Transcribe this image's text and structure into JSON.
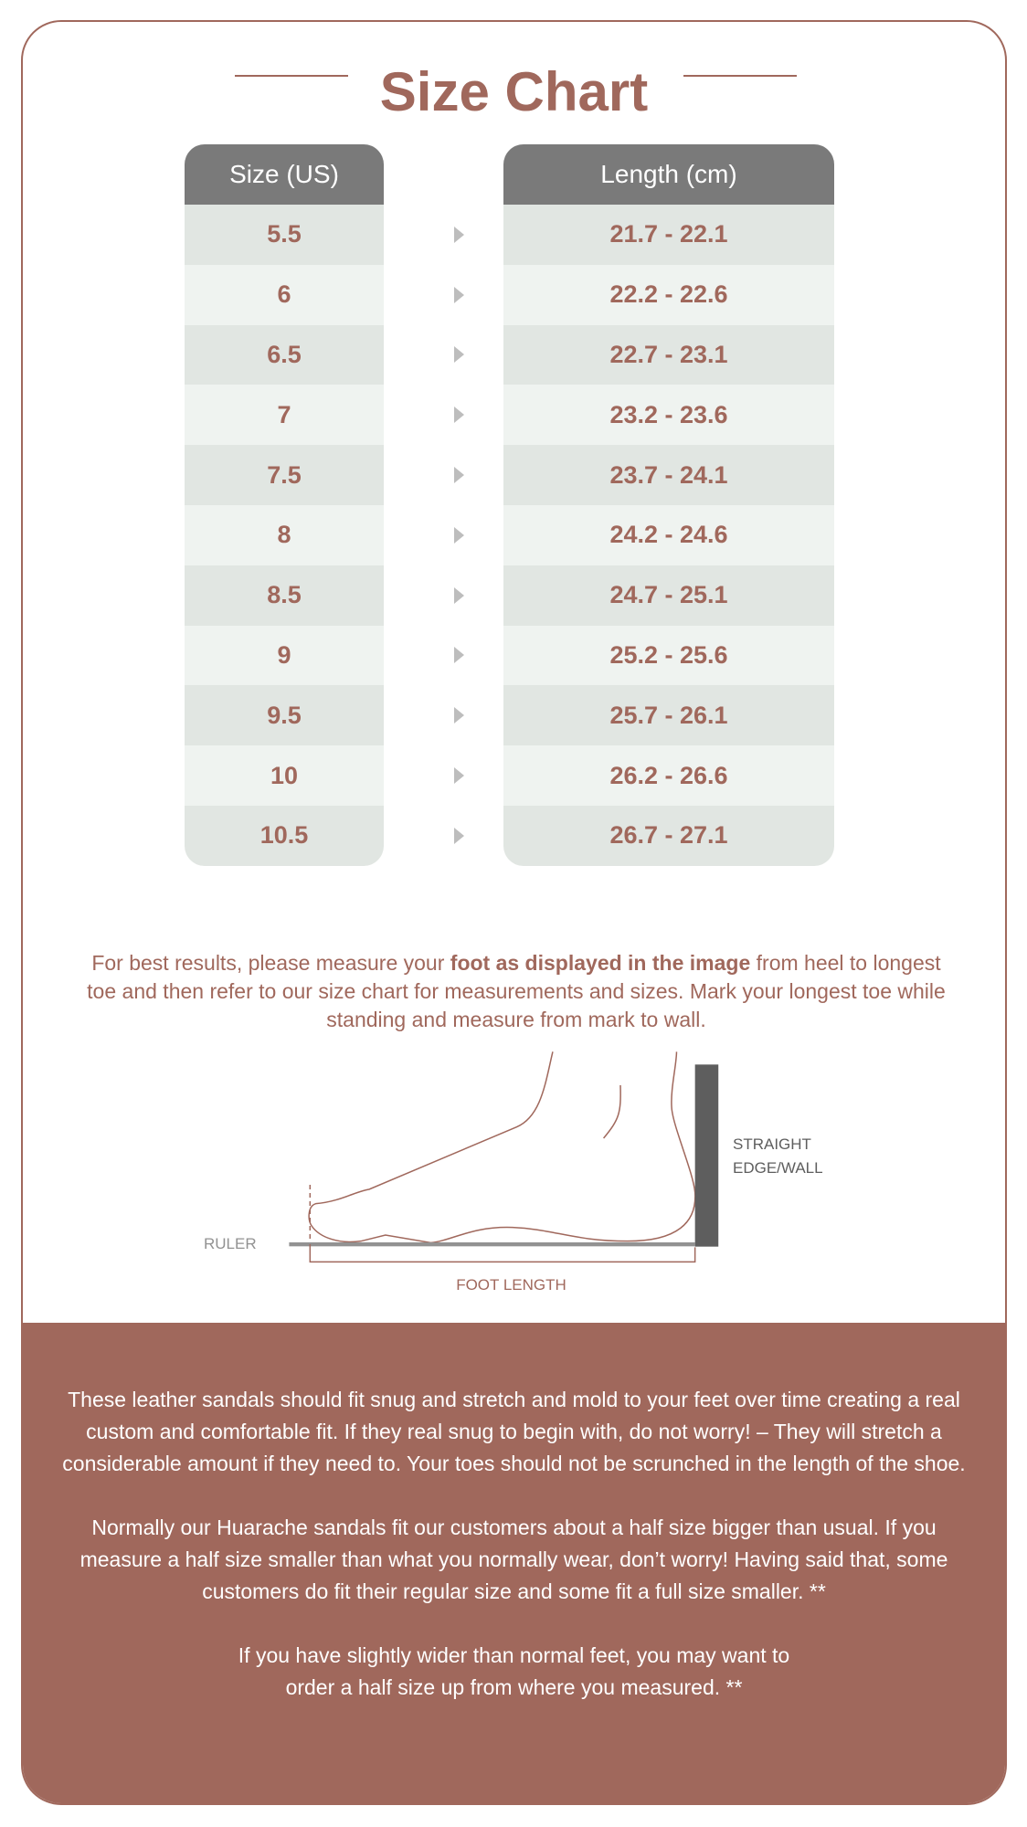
{
  "title": "Size Chart",
  "table": {
    "size_header": "Size (US)",
    "length_header": "Length (cm)",
    "rows": [
      {
        "size": "5.5",
        "length": "21.7 - 22.1"
      },
      {
        "size": "6",
        "length": "22.2 - 22.6"
      },
      {
        "size": "6.5",
        "length": "22.7 - 23.1"
      },
      {
        "size": "7",
        "length": "23.2 - 23.6"
      },
      {
        "size": "7.5",
        "length": "23.7 - 24.1"
      },
      {
        "size": "8",
        "length": "24.2 - 24.6"
      },
      {
        "size": "8.5",
        "length": "24.7 - 25.1"
      },
      {
        "size": "9",
        "length": "25.2 - 25.6"
      },
      {
        "size": "9.5",
        "length": "25.7 - 26.1"
      },
      {
        "size": "10",
        "length": "26.2 - 26.6"
      },
      {
        "size": "10.5",
        "length": "26.7 - 27.1"
      }
    ]
  },
  "intro": {
    "before": "For best results, please measure your ",
    "bold": "foot as displayed in the image",
    "after": " from heel to longest toe and then refer to our size chart for measurements and sizes. Mark your longest toe while standing and measure from mark to wall."
  },
  "diagram": {
    "ruler_label": "RULER",
    "wall_label_1": "STRAIGHT",
    "wall_label_2": "EDGE/WALL",
    "foot_length_label": "FOOT LENGTH"
  },
  "notes": [
    "These leather sandals should fit snug and stretch and mold to your feet over time creating a real custom and comfortable fit. If they real snug to begin with, do not worry! – They will stretch a considerable amount if they need to. Your toes should not be scrunched in the length of the shoe.",
    "Normally our Huarache sandals fit our customers about a half size bigger than usual. If you measure a half size smaller than what you normally wear, don’t worry!  Having said that, some customers do fit their regular size and some fit a full size smaller. **",
    "If you have slightly wider than normal feet, you may want to order a half size up from where you measured. **"
  ],
  "colors": {
    "accent": "#a0685c",
    "header": "#7a7a7a",
    "row_light": "#eff3f0",
    "row_alt": "#e1e6e2"
  }
}
